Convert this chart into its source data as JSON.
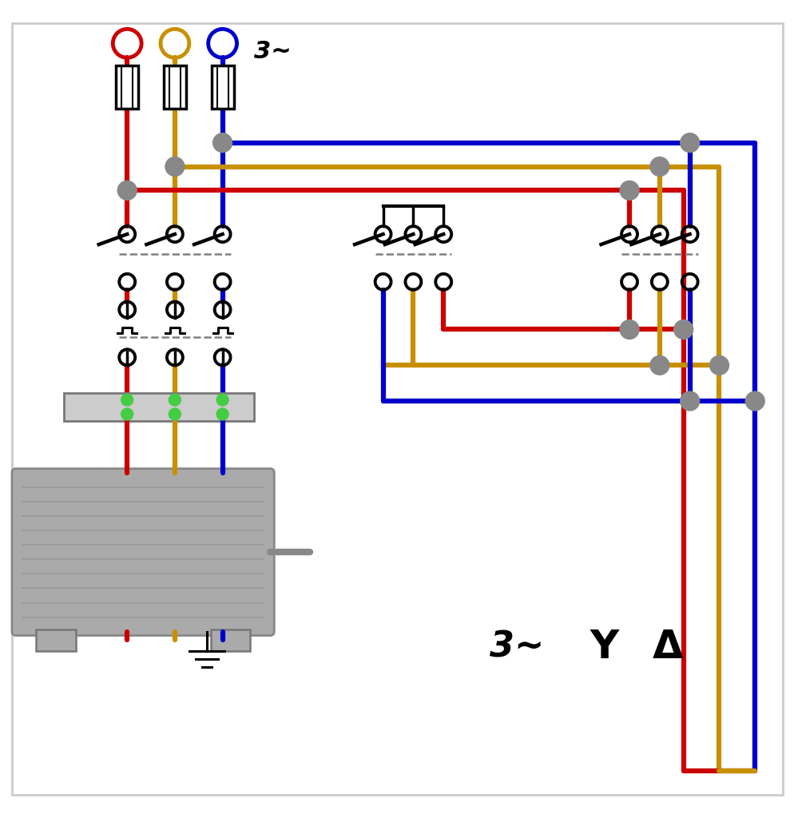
{
  "bg_color": "#ffffff",
  "wire_red": "#cc0000",
  "wire_yellow": "#c89000",
  "wire_blue": "#0000cc",
  "lw_wire": 4.5,
  "lw_contact": 3.0,
  "dot_color": "#888888",
  "motor_fill": "#aaaaaa",
  "motor_edge": "#888888",
  "terminal_green": "#44cc44"
}
